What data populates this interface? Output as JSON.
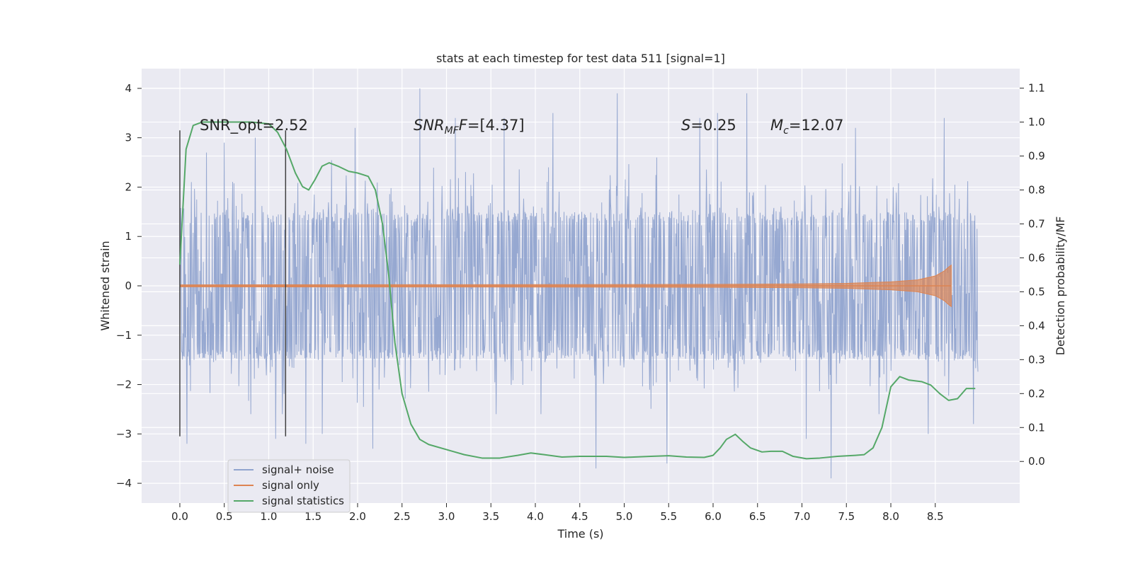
{
  "chart_data": {
    "type": "line",
    "title": "stats at each timestep for test data 511 [signal=1]",
    "xlabel": "Time (s)",
    "ylabel_left": "Whitened strain",
    "ylabel_right": "Detection probability/MF",
    "xlim": [
      -0.43,
      9.45
    ],
    "ylim_left": [
      -4.4,
      4.4
    ],
    "ylim_right": [
      -0.1225,
      1.1575
    ],
    "xticks": [
      "0.0",
      "0.5",
      "1.0",
      "1.5",
      "2.0",
      "2.5",
      "3.0",
      "3.5",
      "4.0",
      "4.5",
      "5.0",
      "5.5",
      "6.0",
      "6.5",
      "7.0",
      "7.5",
      "8.0",
      "8.5"
    ],
    "yticks_left": [
      "4",
      "3",
      "2",
      "1",
      "0",
      "−1",
      "−2",
      "−3",
      "−4"
    ],
    "yticks_right": [
      "1.1",
      "1.0",
      "0.9",
      "0.8",
      "0.7",
      "0.6",
      "0.5",
      "0.4",
      "0.3",
      "0.2",
      "0.1",
      "0.0"
    ],
    "grid": true,
    "legend_position": "lower-left",
    "annotations": {
      "snr_opt": "SNR_opt=2.52",
      "snr_mf_main": "SNR",
      "snr_mf_sub": "MF",
      "snr_mf_value": "=[4.37]",
      "s_main": "S",
      "s_value": "=0.25",
      "mc_main": "M",
      "mc_sub": "c",
      "mc_value": "=12.07"
    },
    "vlines_x": [
      0.0,
      1.19
    ],
    "series": [
      {
        "name": "signal+ noise",
        "color": "#91a4cf",
        "axis": "left",
        "x_range": [
          0.0,
          8.98
        ],
        "typical_amplitude": 1.3,
        "spike_peaks": [
          {
            "x": 0.08,
            "y": -3.2
          },
          {
            "x": 0.3,
            "y": 2.7
          },
          {
            "x": 0.5,
            "y": 2.9
          },
          {
            "x": 0.85,
            "y": 3.0
          },
          {
            "x": 1.08,
            "y": -3.1
          },
          {
            "x": 1.42,
            "y": -3.2
          },
          {
            "x": 1.6,
            "y": -3.0
          },
          {
            "x": 1.97,
            "y": 3.2
          },
          {
            "x": 2.17,
            "y": -3.3
          },
          {
            "x": 2.7,
            "y": 4.0
          },
          {
            "x": 3.1,
            "y": 3.4
          },
          {
            "x": 3.65,
            "y": 3.4
          },
          {
            "x": 4.2,
            "y": 3.5
          },
          {
            "x": 4.68,
            "y": -3.7
          },
          {
            "x": 4.92,
            "y": 3.9
          },
          {
            "x": 5.48,
            "y": -3.6
          },
          {
            "x": 5.85,
            "y": 3.4
          },
          {
            "x": 6.05,
            "y": 3.5
          },
          {
            "x": 6.38,
            "y": 3.9
          },
          {
            "x": 7.05,
            "y": -3.1
          },
          {
            "x": 7.33,
            "y": -3.9
          },
          {
            "x": 7.6,
            "y": 3.2
          },
          {
            "x": 8.42,
            "y": -3.0
          },
          {
            "x": 8.6,
            "y": 3.4
          },
          {
            "x": 8.93,
            "y": -2.8
          }
        ]
      },
      {
        "name": "signal only",
        "color": "#dd8452",
        "axis": "left",
        "envelope": {
          "x": [
            0.0,
            4.0,
            6.0,
            7.0,
            7.5,
            8.0,
            8.3,
            8.5,
            8.6,
            8.65,
            8.68
          ],
          "amp": [
            0.02,
            0.025,
            0.03,
            0.04,
            0.05,
            0.08,
            0.12,
            0.2,
            0.3,
            0.38,
            0.42
          ]
        }
      },
      {
        "name": "signal statistics",
        "color": "#55a868",
        "axis": "right",
        "x": [
          0.0,
          0.07,
          0.15,
          0.25,
          0.5,
          0.8,
          1.0,
          1.1,
          1.2,
          1.3,
          1.38,
          1.45,
          1.52,
          1.6,
          1.68,
          1.78,
          1.9,
          2.0,
          2.12,
          2.2,
          2.28,
          2.35,
          2.42,
          2.5,
          2.6,
          2.7,
          2.8,
          3.0,
          3.2,
          3.4,
          3.6,
          3.8,
          3.95,
          4.1,
          4.3,
          4.5,
          4.8,
          5.0,
          5.3,
          5.5,
          5.7,
          5.9,
          6.0,
          6.08,
          6.15,
          6.25,
          6.33,
          6.42,
          6.55,
          6.65,
          6.78,
          6.9,
          7.05,
          7.2,
          7.4,
          7.6,
          7.7,
          7.8,
          7.9,
          8.0,
          8.1,
          8.2,
          8.35,
          8.45,
          8.55,
          8.65,
          8.75,
          8.85,
          8.95
        ],
        "y": [
          0.58,
          0.92,
          0.99,
          1.0,
          1.0,
          1.0,
          0.995,
          0.97,
          0.92,
          0.85,
          0.81,
          0.8,
          0.83,
          0.87,
          0.88,
          0.87,
          0.855,
          0.85,
          0.84,
          0.8,
          0.7,
          0.55,
          0.35,
          0.2,
          0.11,
          0.065,
          0.05,
          0.035,
          0.02,
          0.01,
          0.01,
          0.018,
          0.025,
          0.02,
          0.013,
          0.015,
          0.015,
          0.012,
          0.015,
          0.017,
          0.013,
          0.012,
          0.018,
          0.04,
          0.065,
          0.08,
          0.06,
          0.04,
          0.028,
          0.03,
          0.03,
          0.015,
          0.008,
          0.01,
          0.015,
          0.018,
          0.02,
          0.04,
          0.1,
          0.22,
          0.25,
          0.24,
          0.235,
          0.225,
          0.2,
          0.18,
          0.185,
          0.215,
          0.215
        ]
      }
    ]
  }
}
